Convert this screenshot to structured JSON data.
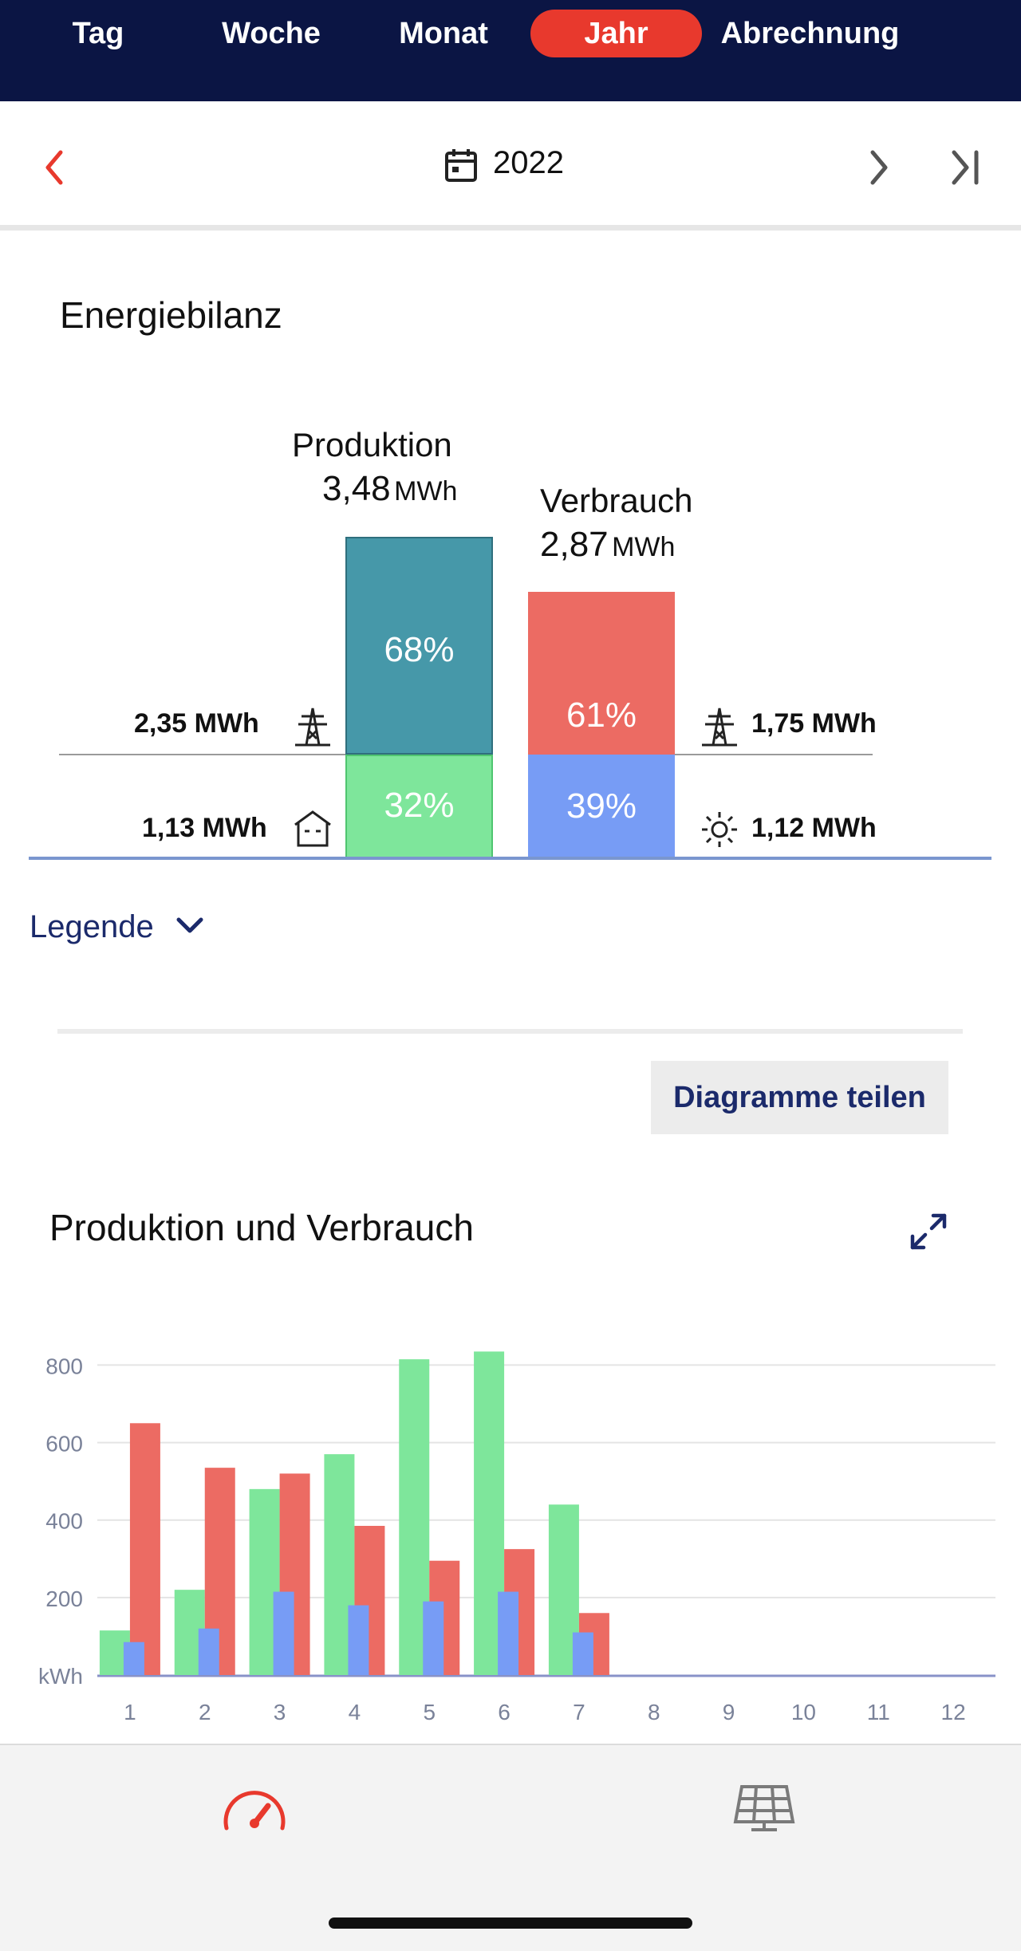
{
  "tabs": [
    {
      "label": "Tag",
      "active": false
    },
    {
      "label": "Woche",
      "active": false
    },
    {
      "label": "Monat",
      "active": false
    },
    {
      "label": "Jahr",
      "active": true
    },
    {
      "label": "Abrechnung",
      "active": false
    }
  ],
  "date_nav": {
    "year": "2022",
    "icons": [
      "chevron-left-icon",
      "calendar-icon",
      "chevron-right-icon",
      "skip-to-end-icon"
    ]
  },
  "bilanz": {
    "title": "Energiebilanz",
    "production": {
      "label": "Produktion",
      "value": "3,48",
      "unit": "MWh",
      "top_pct": "68%",
      "bottom_pct": "32%",
      "top_fraction": 0.68,
      "bottom_fraction": 0.32
    },
    "consumption": {
      "label": "Verbrauch",
      "value": "2,87",
      "unit": "MWh",
      "top_pct": "61%",
      "bottom_pct": "39%",
      "top_fraction": 0.61,
      "bottom_fraction": 0.39
    },
    "left_top": "2,35 MWh",
    "left_bottom": "1,13 MWh",
    "right_top": "1,75 MWh",
    "right_bottom": "1,12 MWh",
    "colors": {
      "production_top": "#4698a9",
      "production_bottom": "#7ee69b",
      "consumption_top": "#ec6b63",
      "consumption_bottom": "#779cf5"
    }
  },
  "legend_toggle": "Legende",
  "share_button": "Diagramme teilen",
  "chart_data": {
    "type": "bar",
    "title": "Produktion und Verbrauch",
    "ylabel": "kWh",
    "ylim": [
      0,
      840
    ],
    "yticks": [
      200,
      400,
      600,
      800
    ],
    "categories": [
      "1",
      "2",
      "3",
      "4",
      "5",
      "6",
      "7",
      "8",
      "9",
      "10",
      "11",
      "12"
    ],
    "series": [
      {
        "color": "#7ee69b",
        "values": [
          115,
          220,
          480,
          570,
          815,
          835,
          440,
          null,
          null,
          null,
          null,
          null
        ]
      },
      {
        "color": "#ec6b63",
        "values": [
          650,
          535,
          520,
          385,
          295,
          325,
          160,
          null,
          null,
          null,
          null,
          null
        ]
      },
      {
        "color": "#779cf5",
        "values": [
          85,
          120,
          215,
          180,
          190,
          215,
          110,
          null,
          null,
          null,
          null,
          null
        ]
      }
    ],
    "grid": true
  },
  "bottom_nav": {
    "icons": [
      "dashboard-gauge-icon",
      "solar-panel-icon"
    ]
  }
}
